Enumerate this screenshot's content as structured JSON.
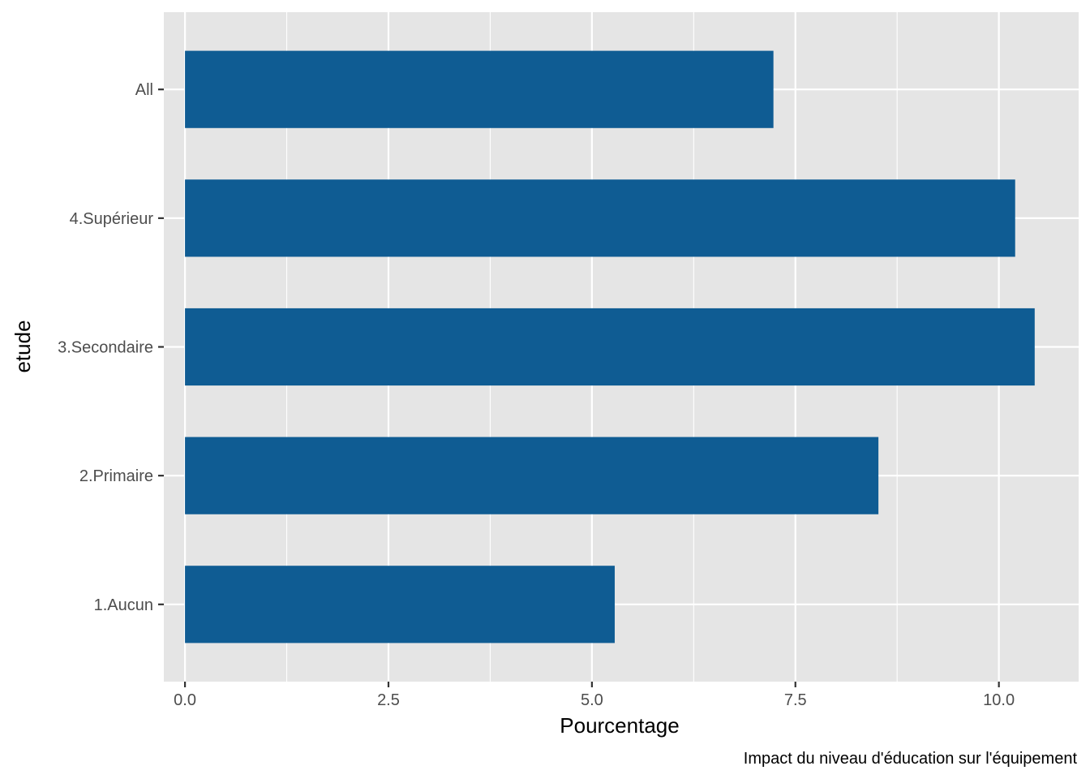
{
  "chart_data": {
    "type": "bar",
    "orientation": "horizontal",
    "categories": [
      "1.Aucun",
      "2.Primaire",
      "3.Secondaire",
      "4.Supérieur",
      "All"
    ],
    "values": [
      5.28,
      8.52,
      10.44,
      10.2,
      7.23
    ],
    "xlabel": "Pourcentage",
    "ylabel": "etude",
    "caption": "Impact du niveau d'éducation sur l'équipement",
    "xlim": [
      -0.26,
      10.98
    ],
    "xticks": [
      0,
      2.5,
      5,
      7.5,
      10
    ],
    "xtick_labels": [
      "0.0",
      "2.5",
      "5.0",
      "7.5",
      "10.0"
    ],
    "grid": true,
    "legend": "none",
    "colors": {
      "bar": "#0f5c93",
      "panel": "#e5e5e5",
      "grid": "#ffffff",
      "tick_text": "#4d4d4d",
      "tick_mark": "#333333"
    }
  }
}
